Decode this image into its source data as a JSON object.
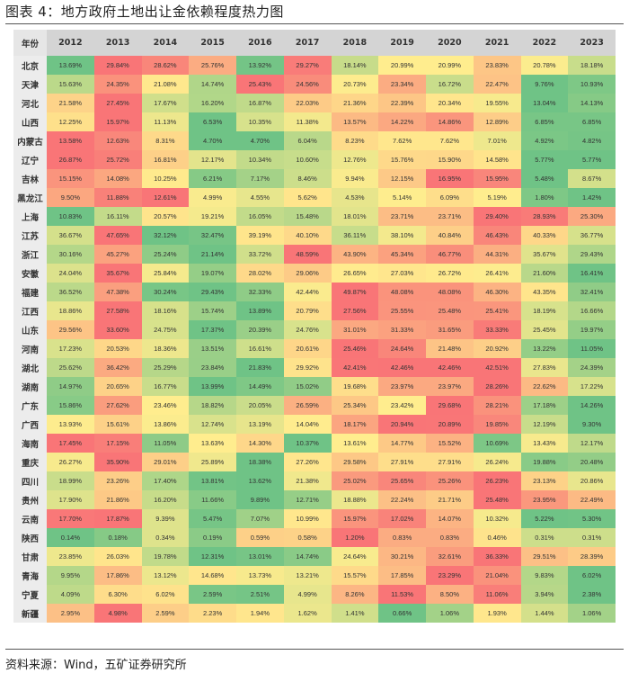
{
  "title": "图表 4：地方政府土地出让金依赖程度热力图",
  "source": "资料来源：Wind，五矿证券研究所",
  "chart_data": {
    "type": "heatmap",
    "title": "地方政府土地出让金依赖程度热力图",
    "corner_label": "年份",
    "columns": [
      "2012",
      "2013",
      "2014",
      "2015",
      "2016",
      "2017",
      "2018",
      "2019",
      "2020",
      "2021",
      "2022",
      "2023"
    ],
    "color_scale": {
      "low": "#63BE7B",
      "mid": "#FFEB84",
      "high": "#F8696B",
      "scope": "per-row"
    },
    "rows": [
      {
        "name": "北京",
        "values": [
          "13.69%",
          "29.84%",
          "28.62%",
          "25.76%",
          "13.92%",
          "29.27%",
          "18.14%",
          "20.99%",
          "20.99%",
          "23.83%",
          "20.78%",
          "18.18%"
        ]
      },
      {
        "name": "天津",
        "values": [
          "15.63%",
          "24.35%",
          "21.08%",
          "14.74%",
          "25.43%",
          "24.56%",
          "20.73%",
          "23.34%",
          "16.72%",
          "22.47%",
          "9.76%",
          "10.93%"
        ]
      },
      {
        "name": "河北",
        "values": [
          "21.58%",
          "27.45%",
          "17.67%",
          "16.20%",
          "16.87%",
          "22.03%",
          "21.36%",
          "22.39%",
          "20.34%",
          "19.55%",
          "13.04%",
          "14.13%"
        ]
      },
      {
        "name": "山西",
        "values": [
          "12.25%",
          "15.97%",
          "11.13%",
          "6.53%",
          "10.35%",
          "11.38%",
          "13.57%",
          "14.22%",
          "14.86%",
          "12.89%",
          "6.85%",
          "6.85%"
        ]
      },
      {
        "name": "内蒙古",
        "values": [
          "13.58%",
          "12.63%",
          "8.31%",
          "4.70%",
          "4.70%",
          "6.04%",
          "8.23%",
          "7.62%",
          "7.62%",
          "7.01%",
          "4.92%",
          "4.82%"
        ]
      },
      {
        "name": "辽宁",
        "values": [
          "26.87%",
          "25.72%",
          "16.81%",
          "12.17%",
          "10.34%",
          "10.60%",
          "12.76%",
          "15.76%",
          "15.90%",
          "14.58%",
          "5.77%",
          "5.77%"
        ]
      },
      {
        "name": "吉林",
        "values": [
          "15.15%",
          "14.08%",
          "10.25%",
          "6.21%",
          "7.17%",
          "8.46%",
          "9.94%",
          "12.15%",
          "16.95%",
          "15.95%",
          "5.48%",
          "8.67%"
        ]
      },
      {
        "name": "黑龙江",
        "values": [
          "9.50%",
          "11.88%",
          "12.61%",
          "4.99%",
          "4.55%",
          "5.62%",
          "4.53%",
          "5.14%",
          "6.09%",
          "5.19%",
          "1.80%",
          "1.42%"
        ]
      },
      {
        "name": "上海",
        "values": [
          "10.83%",
          "16.11%",
          "20.57%",
          "19.21%",
          "16.05%",
          "15.48%",
          "18.01%",
          "23.71%",
          "23.71%",
          "29.40%",
          "28.93%",
          "25.30%"
        ]
      },
      {
        "name": "江苏",
        "values": [
          "36.67%",
          "47.65%",
          "32.12%",
          "32.47%",
          "39.19%",
          "40.10%",
          "36.11%",
          "38.10%",
          "40.84%",
          "46.43%",
          "40.33%",
          "36.77%"
        ]
      },
      {
        "name": "浙江",
        "values": [
          "30.16%",
          "45.27%",
          "25.24%",
          "21.14%",
          "33.72%",
          "48.59%",
          "43.90%",
          "45.34%",
          "46.77%",
          "44.31%",
          "35.67%",
          "29.43%"
        ]
      },
      {
        "name": "安徽",
        "values": [
          "24.04%",
          "35.67%",
          "25.84%",
          "19.07%",
          "28.02%",
          "29.06%",
          "26.65%",
          "27.03%",
          "26.72%",
          "26.41%",
          "21.60%",
          "16.41%"
        ]
      },
      {
        "name": "福建",
        "values": [
          "36.52%",
          "47.38%",
          "30.24%",
          "29.43%",
          "32.33%",
          "42.44%",
          "49.87%",
          "48.08%",
          "48.08%",
          "46.30%",
          "43.35%",
          "32.41%"
        ]
      },
      {
        "name": "江西",
        "values": [
          "18.86%",
          "27.58%",
          "18.16%",
          "15.74%",
          "13.89%",
          "20.79%",
          "27.56%",
          "25.55%",
          "25.48%",
          "25.41%",
          "18.19%",
          "16.66%"
        ]
      },
      {
        "name": "山东",
        "values": [
          "29.56%",
          "33.60%",
          "24.75%",
          "17.37%",
          "20.39%",
          "24.76%",
          "31.01%",
          "31.33%",
          "31.65%",
          "33.33%",
          "25.45%",
          "19.97%"
        ]
      },
      {
        "name": "河南",
        "values": [
          "17.23%",
          "20.53%",
          "18.36%",
          "13.51%",
          "16.61%",
          "20.61%",
          "25.46%",
          "24.64%",
          "21.48%",
          "20.92%",
          "13.22%",
          "11.05%"
        ]
      },
      {
        "name": "湖北",
        "values": [
          "25.62%",
          "36.42%",
          "25.29%",
          "23.84%",
          "21.83%",
          "29.92%",
          "42.41%",
          "42.46%",
          "42.46%",
          "42.51%",
          "27.83%",
          "24.39%"
        ]
      },
      {
        "name": "湖南",
        "values": [
          "14.97%",
          "20.65%",
          "16.77%",
          "13.99%",
          "14.49%",
          "15.02%",
          "19.68%",
          "23.97%",
          "23.97%",
          "28.26%",
          "22.62%",
          "17.22%"
        ]
      },
      {
        "name": "广东",
        "values": [
          "15.86%",
          "27.62%",
          "23.46%",
          "18.82%",
          "20.05%",
          "26.59%",
          "25.34%",
          "23.42%",
          "29.68%",
          "28.21%",
          "17.18%",
          "14.26%"
        ]
      },
      {
        "name": "广西",
        "values": [
          "13.93%",
          "15.61%",
          "13.86%",
          "12.74%",
          "13.19%",
          "14.04%",
          "18.17%",
          "20.94%",
          "20.89%",
          "19.85%",
          "12.19%",
          "9.30%"
        ]
      },
      {
        "name": "海南",
        "values": [
          "17.45%",
          "17.15%",
          "11.05%",
          "13.63%",
          "14.30%",
          "10.37%",
          "13.61%",
          "14.77%",
          "15.52%",
          "10.69%",
          "13.43%",
          "12.17%"
        ]
      },
      {
        "name": "重庆",
        "values": [
          "26.27%",
          "35.90%",
          "29.01%",
          "25.89%",
          "18.38%",
          "27.26%",
          "29.58%",
          "27.91%",
          "27.91%",
          "26.24%",
          "19.88%",
          "20.48%"
        ]
      },
      {
        "name": "四川",
        "values": [
          "18.99%",
          "23.26%",
          "17.40%",
          "13.81%",
          "13.62%",
          "21.38%",
          "25.02%",
          "25.65%",
          "25.26%",
          "26.23%",
          "23.13%",
          "20.86%"
        ]
      },
      {
        "name": "贵州",
        "values": [
          "17.90%",
          "21.86%",
          "16.20%",
          "11.66%",
          "9.89%",
          "12.71%",
          "18.88%",
          "22.24%",
          "21.71%",
          "25.48%",
          "23.95%",
          "22.49%"
        ]
      },
      {
        "name": "云南",
        "values": [
          "17.70%",
          "17.87%",
          "9.39%",
          "5.47%",
          "7.07%",
          "10.99%",
          "15.97%",
          "17.02%",
          "14.07%",
          "10.32%",
          "5.22%",
          "5.30%"
        ]
      },
      {
        "name": "陕西",
        "values": [
          "0.14%",
          "0.18%",
          "0.34%",
          "0.19%",
          "0.59%",
          "0.58%",
          "1.20%",
          "0.83%",
          "0.83%",
          "0.46%",
          "0.31%",
          "0.31%"
        ]
      },
      {
        "name": "甘肃",
        "values": [
          "23.85%",
          "26.03%",
          "19.78%",
          "12.31%",
          "13.01%",
          "14.74%",
          "24.64%",
          "30.21%",
          "32.61%",
          "36.33%",
          "29.51%",
          "28.39%"
        ]
      },
      {
        "name": "青海",
        "values": [
          "9.95%",
          "17.86%",
          "13.12%",
          "14.68%",
          "13.73%",
          "13.21%",
          "15.57%",
          "17.85%",
          "23.29%",
          "21.04%",
          "9.83%",
          "6.02%"
        ]
      },
      {
        "name": "宁夏",
        "values": [
          "4.09%",
          "6.30%",
          "6.02%",
          "2.59%",
          "2.51%",
          "4.99%",
          "8.26%",
          "11.53%",
          "8.50%",
          "11.06%",
          "3.94%",
          "2.38%"
        ]
      },
      {
        "name": "新疆",
        "values": [
          "2.95%",
          "4.98%",
          "2.59%",
          "2.23%",
          "1.94%",
          "1.62%",
          "1.41%",
          "0.66%",
          "1.06%",
          "1.93%",
          "1.44%",
          "1.06%"
        ]
      }
    ]
  }
}
